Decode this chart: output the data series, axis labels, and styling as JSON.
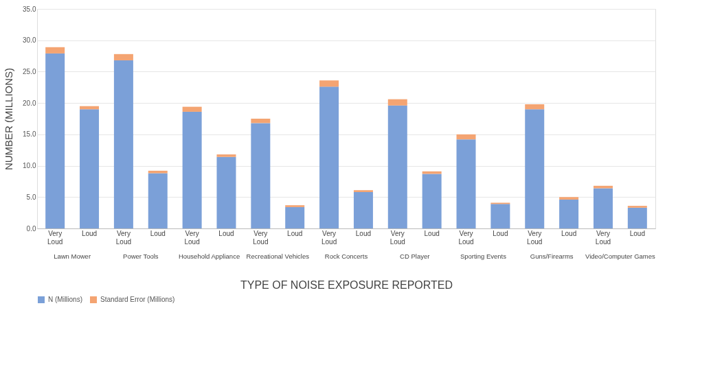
{
  "chart_data": {
    "type": "bar",
    "stacked": true,
    "xlabel": "TYPE OF NOISE EXPOSURE REPORTED",
    "ylabel": "NUMBER (MILLIONS)",
    "categories": [
      "Very Loud",
      "Loud",
      "Very Loud",
      "Loud",
      "Very Loud",
      "Loud",
      "Very Loud",
      "Loud",
      "Very Loud",
      "Loud",
      "Very Loud",
      "Loud",
      "Very Loud",
      "Loud",
      "Very Loud",
      "Loud",
      "Very Loud",
      "Loud"
    ],
    "annotations": [
      "Lawn Mower",
      "Power Tools",
      "Household Appliance",
      "Recreational Vehicles",
      "Rock Concerts",
      "CD Player",
      "Sporting Events",
      "Guns/Firearms",
      "Video/Computer Games"
    ],
    "series": [
      {
        "name": "N (Millions)",
        "color": "#7ba0d8",
        "values": [
          27.9,
          19.0,
          26.8,
          8.8,
          18.6,
          11.4,
          16.8,
          3.4,
          22.6,
          5.8,
          19.6,
          8.7,
          14.2,
          3.9,
          19.0,
          4.6,
          6.4,
          3.3
        ]
      },
      {
        "name": "Standard Error (Millions)",
        "color": "#f4a472",
        "values": [
          1.0,
          0.5,
          1.0,
          0.4,
          0.8,
          0.4,
          0.7,
          0.3,
          1.0,
          0.3,
          1.0,
          0.4,
          0.8,
          0.2,
          0.8,
          0.4,
          0.4,
          0.3
        ]
      }
    ],
    "ylim": [
      0,
      35
    ],
    "yticks": [
      {
        "value": 0,
        "label": "0.0"
      },
      {
        "value": 5,
        "label": "5.0"
      },
      {
        "value": 10,
        "label": "10.0"
      },
      {
        "value": 15,
        "label": "15.0"
      },
      {
        "value": 20,
        "label": "20.0"
      },
      {
        "value": 25,
        "label": "25.0"
      },
      {
        "value": 30,
        "label": "30.0"
      },
      {
        "value": 35,
        "label": "35.0"
      }
    ],
    "grid": "y",
    "legend": "bottom"
  }
}
